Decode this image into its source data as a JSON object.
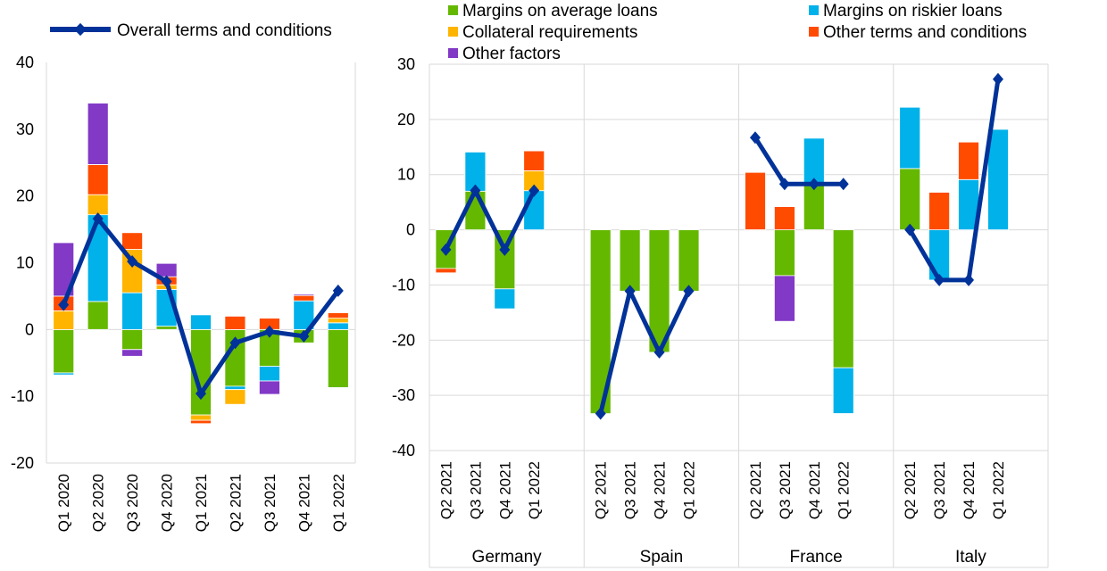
{
  "colors": {
    "margins_average": "#65b800",
    "margins_riskier": "#00b1ea",
    "collateral": "#ffb400",
    "other_terms": "#ff4b00",
    "other_factors": "#8139c6",
    "overall": "#003299"
  },
  "chart_data": [
    {
      "type": "bar",
      "stacked": true,
      "categories": [
        "Q1 2020",
        "Q2 2020",
        "Q3 2020",
        "Q4 2020",
        "Q1 2021",
        "Q2 2021",
        "Q3 2021",
        "Q4 2021",
        "Q1 2022"
      ],
      "series": [
        {
          "name": "Margins on average loans",
          "color_key": "margins_average",
          "values": [
            -6.5,
            4.2,
            -3.0,
            0.5,
            -12.8,
            -8.5,
            -5.5,
            -2.0,
            -8.7
          ]
        },
        {
          "name": "Margins on riskier loans",
          "color_key": "margins_riskier",
          "values": [
            -0.3,
            13.0,
            5.5,
            5.5,
            2.2,
            -0.5,
            -2.2,
            4.3,
            1.0
          ]
        },
        {
          "name": "Collateral requirements",
          "color_key": "collateral",
          "values": [
            2.8,
            3.0,
            6.5,
            0.7,
            -0.8,
            -2.2,
            0,
            0,
            0.7
          ]
        },
        {
          "name": "Other terms and conditions",
          "color_key": "other_terms",
          "values": [
            2.2,
            4.5,
            2.5,
            1.2,
            -0.5,
            2.0,
            1.7,
            0.8,
            0.8
          ]
        },
        {
          "name": "Other factors",
          "color_key": "other_factors",
          "values": [
            8.0,
            9.2,
            -1.0,
            2.0,
            0,
            0,
            -2.0,
            0.2,
            0
          ]
        }
      ],
      "line": {
        "name": "Overall terms and conditions",
        "color_key": "overall",
        "values": [
          3.7,
          16.6,
          10.2,
          7.2,
          -9.6,
          -2.0,
          -0.3,
          -1.0,
          5.8
        ]
      },
      "ylim": [
        -20,
        40
      ],
      "yticks": [
        "-20",
        "-10",
        "0",
        "10",
        "20",
        "30",
        "40"
      ],
      "legend": {
        "placement": "top-left",
        "entries": [
          "Overall terms and conditions"
        ]
      }
    },
    {
      "type": "bar",
      "stacked": true,
      "groups": [
        "Germany",
        "Spain",
        "France",
        "Italy"
      ],
      "categories": [
        "Q2 2021",
        "Q3 2021",
        "Q4 2021",
        "Q1 2022"
      ],
      "series": [
        {
          "name": "Margins on average loans",
          "color_key": "margins_average",
          "values": [
            [
              -7.0,
              7.0,
              -10.7,
              0
            ],
            [
              -33.3,
              -11.1,
              -22.2,
              -11.1
            ],
            [
              0,
              -8.3,
              8.3,
              -25.0
            ],
            [
              11.1,
              0,
              0,
              0
            ]
          ]
        },
        {
          "name": "Margins on riskier loans",
          "color_key": "margins_riskier",
          "values": [
            [
              0,
              7.1,
              -3.6,
              7.1
            ],
            [
              0,
              0,
              0,
              0
            ],
            [
              0,
              0,
              8.3,
              -8.3
            ],
            [
              11.1,
              -9.1,
              9.1,
              18.2
            ]
          ]
        },
        {
          "name": "Collateral requirements",
          "color_key": "collateral",
          "values": [
            [
              0,
              0,
              0,
              3.6
            ],
            [
              0,
              0,
              0,
              0
            ],
            [
              0,
              0,
              0,
              0
            ],
            [
              0,
              0,
              0,
              0
            ]
          ]
        },
        {
          "name": "Other terms and conditions",
          "color_key": "other_terms",
          "values": [
            [
              -0.8,
              0,
              0,
              3.6
            ],
            [
              0,
              0,
              0,
              0
            ],
            [
              10.4,
              4.2,
              0,
              0
            ],
            [
              0,
              6.8,
              6.8,
              0
            ]
          ]
        },
        {
          "name": "Other factors",
          "color_key": "other_factors",
          "values": [
            [
              0,
              0,
              0,
              0
            ],
            [
              0,
              0,
              0,
              0
            ],
            [
              0,
              -8.3,
              0,
              0
            ],
            [
              0,
              0,
              0,
              0
            ]
          ]
        }
      ],
      "line": {
        "name": "Overall terms and conditions",
        "color_key": "overall",
        "values": [
          [
            -3.6,
            7.1,
            -3.6,
            7.1
          ],
          [
            -33.3,
            -11.1,
            -22.2,
            -11.1
          ],
          [
            16.7,
            8.3,
            8.3,
            8.3
          ],
          [
            0,
            -9.1,
            -9.1,
            27.3
          ]
        ]
      },
      "ylim": [
        -40,
        30
      ],
      "yticks": [
        "-40",
        "-30",
        "-20",
        "-10",
        "0",
        "10",
        "20",
        "30"
      ],
      "legend": {
        "placement": "top",
        "entries": [
          "Margins on average loans",
          "Margins on riskier loans",
          "Collateral requirements",
          "Other terms and conditions",
          "Other factors"
        ]
      }
    }
  ]
}
